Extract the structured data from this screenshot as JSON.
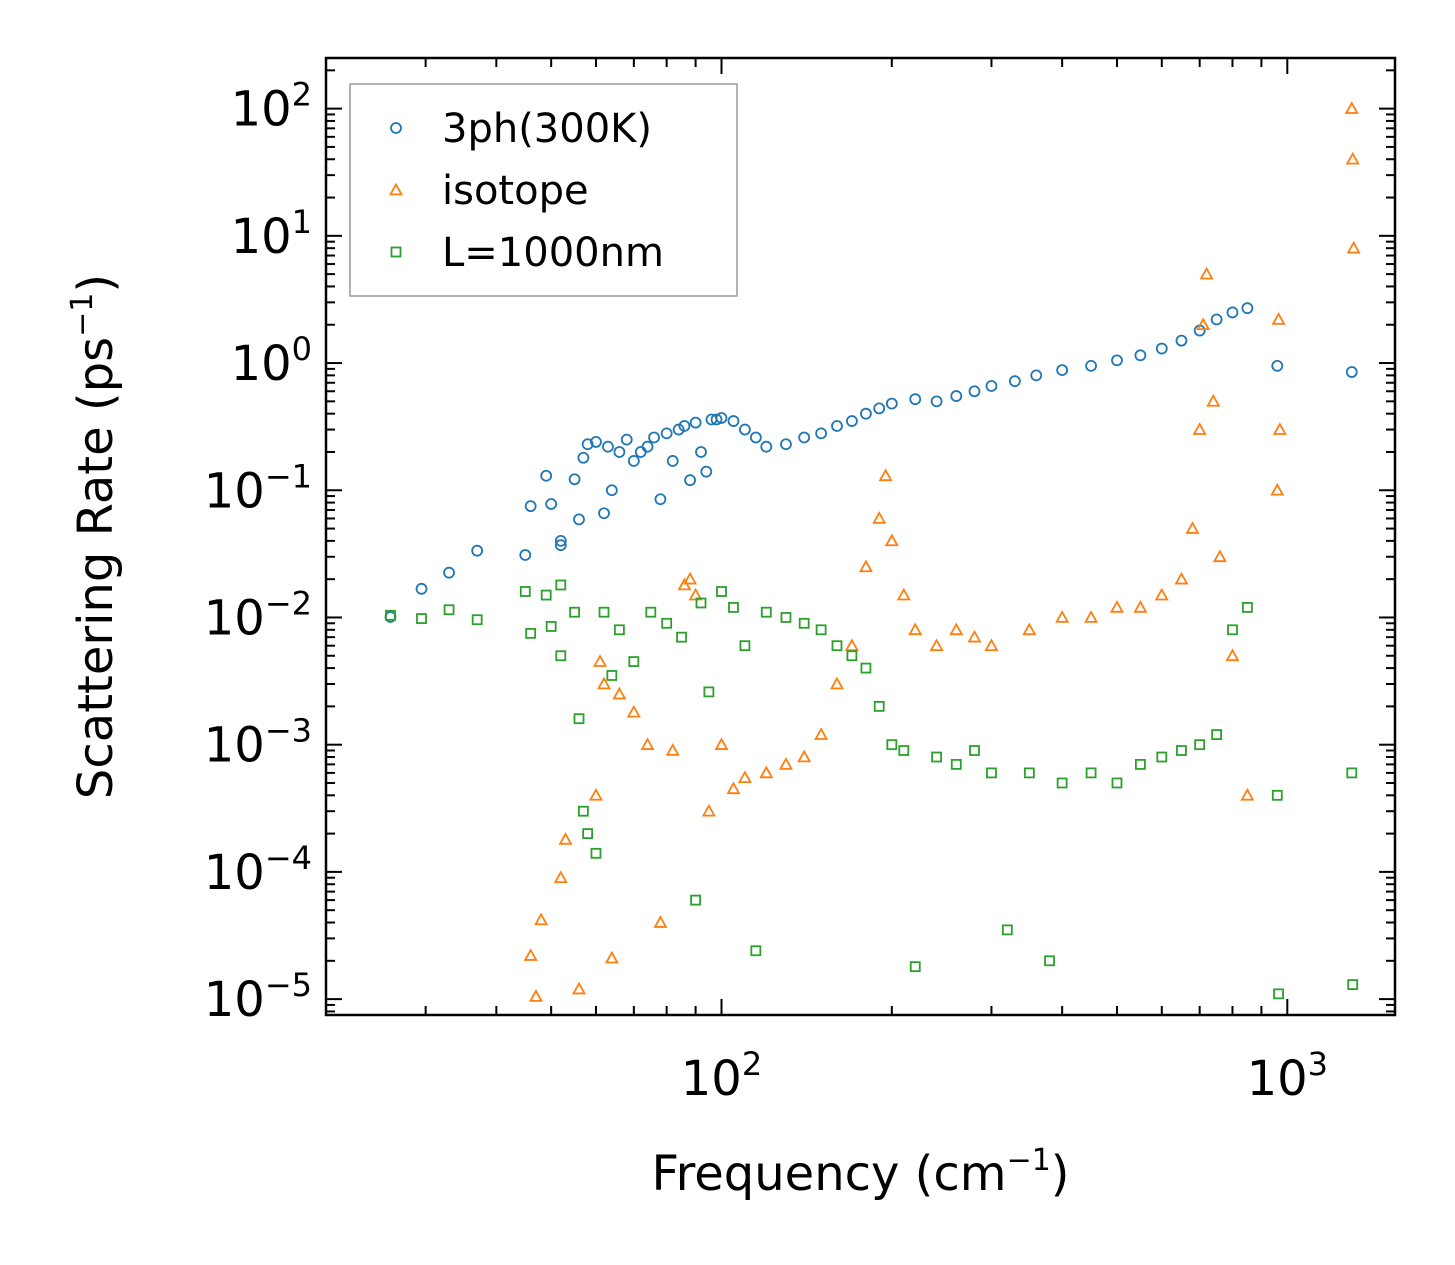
{
  "chart_data": {
    "type": "scatter",
    "title": "",
    "xlabel": "Frequency (cm",
    "xlabel_sup": "−1",
    "xlabel_end": ")",
    "ylabel": "Scattering Rate (ps",
    "ylabel_sup": "−1",
    "ylabel_end": ")",
    "xscale": "log",
    "yscale": "log",
    "xlim": [
      20,
      1550
    ],
    "ylim": [
      7.5e-06,
      250
    ],
    "grid": false,
    "legend_position": "top-left",
    "x_major_ticks": [
      {
        "value": 100,
        "base": "10",
        "exp": "2"
      },
      {
        "value": 1000,
        "base": "10",
        "exp": "3"
      }
    ],
    "y_major_ticks": [
      {
        "value": 1e-05,
        "base": "10",
        "exp": "−5"
      },
      {
        "value": 0.0001,
        "base": "10",
        "exp": "−4"
      },
      {
        "value": 0.001,
        "base": "10",
        "exp": "−3"
      },
      {
        "value": 0.01,
        "base": "10",
        "exp": "−2"
      },
      {
        "value": 0.1,
        "base": "10",
        "exp": "−1"
      },
      {
        "value": 1,
        "base": "10",
        "exp": "0"
      },
      {
        "value": 10,
        "base": "10",
        "exp": "1"
      },
      {
        "value": 100,
        "base": "10",
        "exp": "2"
      }
    ],
    "series": [
      {
        "name": "3ph(300K)",
        "marker": "circle",
        "color": "#1f77b4",
        "points": [
          [
            26,
            0.0101
          ],
          [
            29.5,
            0.0168
          ],
          [
            33,
            0.0225
          ],
          [
            37,
            0.0335
          ],
          [
            45,
            0.031
          ],
          [
            46,
            0.075
          ],
          [
            49,
            0.13
          ],
          [
            50,
            0.078
          ],
          [
            52,
            0.04
          ],
          [
            52,
            0.037
          ],
          [
            55,
            0.122
          ],
          [
            56,
            0.059
          ],
          [
            57,
            0.18
          ],
          [
            58,
            0.23
          ],
          [
            60,
            0.24
          ],
          [
            62,
            0.066
          ],
          [
            63,
            0.22
          ],
          [
            64,
            0.1
          ],
          [
            66,
            0.2
          ],
          [
            68,
            0.25
          ],
          [
            70,
            0.17
          ],
          [
            72,
            0.2
          ],
          [
            74,
            0.22
          ],
          [
            76,
            0.26
          ],
          [
            78,
            0.085
          ],
          [
            80,
            0.28
          ],
          [
            82,
            0.17
          ],
          [
            84,
            0.3
          ],
          [
            86,
            0.32
          ],
          [
            88,
            0.12
          ],
          [
            90,
            0.34
          ],
          [
            92,
            0.2
          ],
          [
            94,
            0.14
          ],
          [
            96,
            0.36
          ],
          [
            98,
            0.36
          ],
          [
            100,
            0.37
          ],
          [
            105,
            0.35
          ],
          [
            110,
            0.3
          ],
          [
            115,
            0.26
          ],
          [
            120,
            0.22
          ],
          [
            130,
            0.23
          ],
          [
            140,
            0.26
          ],
          [
            150,
            0.28
          ],
          [
            160,
            0.32
          ],
          [
            170,
            0.35
          ],
          [
            180,
            0.4
          ],
          [
            190,
            0.44
          ],
          [
            200,
            0.48
          ],
          [
            220,
            0.52
          ],
          [
            240,
            0.5
          ],
          [
            260,
            0.55
          ],
          [
            280,
            0.6
          ],
          [
            300,
            0.66
          ],
          [
            330,
            0.72
          ],
          [
            360,
            0.8
          ],
          [
            400,
            0.88
          ],
          [
            450,
            0.95
          ],
          [
            500,
            1.05
          ],
          [
            550,
            1.15
          ],
          [
            600,
            1.3
          ],
          [
            650,
            1.5
          ],
          [
            700,
            1.8
          ],
          [
            750,
            2.2
          ],
          [
            800,
            2.5
          ],
          [
            850,
            2.7
          ],
          [
            960,
            0.95
          ],
          [
            1300,
            0.85
          ]
        ]
      },
      {
        "name": "isotope",
        "marker": "triangle",
        "color": "#ff7f0e",
        "points": [
          [
            46,
            2.2e-05
          ],
          [
            47,
            1.05e-05
          ],
          [
            48,
            4.2e-05
          ],
          [
            52,
            9e-05
          ],
          [
            53,
            0.00018
          ],
          [
            56,
            1.2e-05
          ],
          [
            60,
            0.0004
          ],
          [
            61,
            0.0045
          ],
          [
            62,
            0.003
          ],
          [
            64,
            2.1e-05
          ],
          [
            66,
            0.0025
          ],
          [
            70,
            0.0018
          ],
          [
            74,
            0.001
          ],
          [
            78,
            4e-05
          ],
          [
            82,
            0.0009
          ],
          [
            86,
            0.018
          ],
          [
            88,
            0.02
          ],
          [
            90,
            0.015
          ],
          [
            95,
            0.0003
          ],
          [
            100,
            0.001
          ],
          [
            105,
            0.00045
          ],
          [
            110,
            0.00055
          ],
          [
            120,
            0.0006
          ],
          [
            130,
            0.0007
          ],
          [
            140,
            0.0008
          ],
          [
            150,
            0.0012
          ],
          [
            160,
            0.003
          ],
          [
            170,
            0.006
          ],
          [
            180,
            0.025
          ],
          [
            190,
            0.06
          ],
          [
            195,
            0.13
          ],
          [
            200,
            0.04
          ],
          [
            210,
            0.015
          ],
          [
            220,
            0.008
          ],
          [
            240,
            0.006
          ],
          [
            260,
            0.008
          ],
          [
            280,
            0.007
          ],
          [
            300,
            0.006
          ],
          [
            350,
            0.008
          ],
          [
            400,
            0.01
          ],
          [
            450,
            0.01
          ],
          [
            500,
            0.012
          ],
          [
            550,
            0.012
          ],
          [
            600,
            0.015
          ],
          [
            650,
            0.02
          ],
          [
            680,
            0.05
          ],
          [
            700,
            0.3
          ],
          [
            710,
            2
          ],
          [
            720,
            5
          ],
          [
            740,
            0.5
          ],
          [
            760,
            0.03
          ],
          [
            800,
            0.005
          ],
          [
            850,
            0.0004
          ],
          [
            960,
            0.1
          ],
          [
            965,
            2.2
          ],
          [
            970,
            0.3
          ],
          [
            1300,
            100
          ],
          [
            1305,
            40
          ],
          [
            1310,
            8
          ]
        ]
      },
      {
        "name": "L=1000nm",
        "marker": "square",
        "color": "#2ca02c",
        "points": [
          [
            26,
            0.0104
          ],
          [
            29.5,
            0.0098
          ],
          [
            33,
            0.0115
          ],
          [
            37,
            0.0096
          ],
          [
            45,
            0.016
          ],
          [
            46,
            0.0075
          ],
          [
            49,
            0.015
          ],
          [
            50,
            0.0085
          ],
          [
            52,
            0.018
          ],
          [
            52,
            0.005
          ],
          [
            55,
            0.011
          ],
          [
            56,
            0.0016
          ],
          [
            57,
            0.0003
          ],
          [
            58,
            0.0002
          ],
          [
            60,
            0.00014
          ],
          [
            62,
            0.011
          ],
          [
            64,
            0.0035
          ],
          [
            66,
            0.008
          ],
          [
            70,
            0.0045
          ],
          [
            75,
            0.011
          ],
          [
            80,
            0.009
          ],
          [
            85,
            0.007
          ],
          [
            90,
            6e-05
          ],
          [
            92,
            0.013
          ],
          [
            95,
            0.0026
          ],
          [
            100,
            0.016
          ],
          [
            105,
            0.012
          ],
          [
            110,
            0.006
          ],
          [
            115,
            2.4e-05
          ],
          [
            120,
            0.011
          ],
          [
            130,
            0.01
          ],
          [
            140,
            0.009
          ],
          [
            150,
            0.008
          ],
          [
            160,
            0.006
          ],
          [
            170,
            0.005
          ],
          [
            180,
            0.004
          ],
          [
            190,
            0.002
          ],
          [
            200,
            0.001
          ],
          [
            210,
            0.0009
          ],
          [
            220,
            1.8e-05
          ],
          [
            240,
            0.0008
          ],
          [
            260,
            0.0007
          ],
          [
            280,
            0.0009
          ],
          [
            300,
            0.0006
          ],
          [
            320,
            3.5e-05
          ],
          [
            350,
            0.0006
          ],
          [
            380,
            2e-05
          ],
          [
            400,
            0.0005
          ],
          [
            450,
            0.0006
          ],
          [
            500,
            0.0005
          ],
          [
            550,
            0.0007
          ],
          [
            600,
            0.0008
          ],
          [
            650,
            0.0009
          ],
          [
            700,
            0.001
          ],
          [
            750,
            0.0012
          ],
          [
            800,
            0.008
          ],
          [
            850,
            0.012
          ],
          [
            960,
            0.0004
          ],
          [
            965,
            1.1e-05
          ],
          [
            1300,
            0.0006
          ],
          [
            1305,
            1.3e-05
          ]
        ]
      }
    ]
  }
}
